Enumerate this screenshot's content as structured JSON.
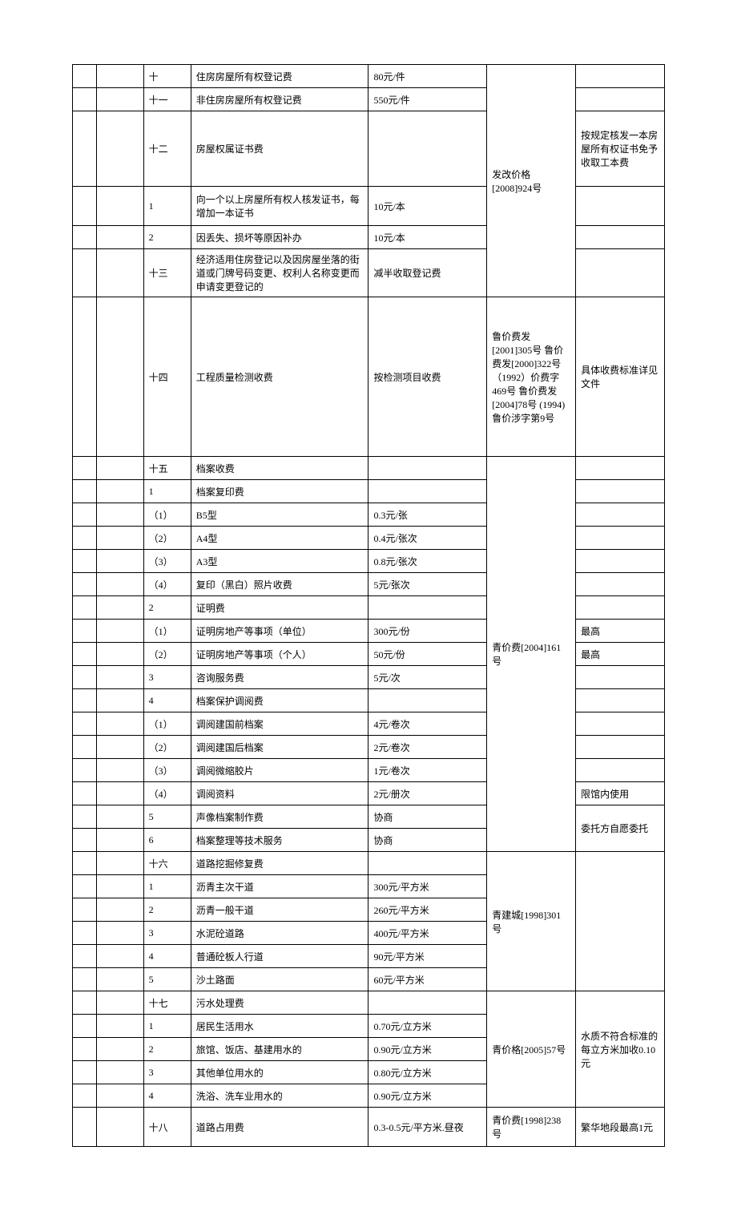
{
  "rows": {
    "r1": {
      "c": "十",
      "d": "住房房屋所有权登记费",
      "e": "80元/件"
    },
    "r2": {
      "c": "十一",
      "d": "非住房房屋所有权登记费",
      "e": "550元/件"
    },
    "r3": {
      "c": "十二",
      "d": "房屋权属证书费",
      "e": "",
      "g": "按规定核发一本房屋所有权证书免予收取工本费"
    },
    "r4": {
      "c": "1",
      "d": "向一个以上房屋所有权人核发证书，每增加一本证书",
      "e": "10元/本"
    },
    "r5": {
      "c": "2",
      "d": "因丢失、损坏等原因补办",
      "e": "10元/本"
    },
    "r6": {
      "c": "十三",
      "d": "经济适用住房登记以及因房屋坐落的街道或门牌号码变更、权利人名称变更而申请变更登记的",
      "e": "减半收取登记费"
    },
    "grpA_f": "发改价格[2008]924号",
    "r7": {
      "c": "十四",
      "d": "工程质量检测收费",
      "e": "按检测项目收费",
      "f": "鲁价费发[2001]305号 鲁价费发[2000]322号 （1992）价费字469号 鲁价费发[2004]78号 (1994)鲁价涉字第9号",
      "g": "具体收费标准详见文件"
    },
    "r8": {
      "c": "十五",
      "d": "档案收费"
    },
    "r9": {
      "c": "1",
      "d": "档案复印费"
    },
    "r10": {
      "c": "（1）",
      "d": "B5型",
      "e": "0.3元/张"
    },
    "r11": {
      "c": "（2）",
      "d": "A4型",
      "e": "0.4元/张次"
    },
    "r12": {
      "c": "（3）",
      "d": "A3型",
      "e": "0.8元/张次"
    },
    "r13": {
      "c": "（4）",
      "d": "复印（黑白）照片收费",
      "e": "5元/张次"
    },
    "r14": {
      "c": "2",
      "d": "证明费"
    },
    "r15": {
      "c": "（1）",
      "d": "证明房地产等事项（单位）",
      "e": "300元/份",
      "g": "最高"
    },
    "r16": {
      "c": "（2）",
      "d": "证明房地产等事项（个人）",
      "e": "50元/份",
      "g": "最高"
    },
    "grpB_f": "青价费[2004]161号",
    "r17": {
      "c": "3",
      "d": "咨询服务费",
      "e": "5元/次"
    },
    "r18": {
      "c": "4",
      "d": "档案保护调阅费"
    },
    "r19": {
      "c": "（1）",
      "d": "调阅建国前档案",
      "e": "4元/卷次"
    },
    "r20": {
      "c": "（2）",
      "d": "调阅建国后档案",
      "e": "2元/卷次"
    },
    "r21": {
      "c": "（3）",
      "d": "调阅微缩胶片",
      "e": "1元/卷次"
    },
    "r22": {
      "c": "（4）",
      "d": "调阅资料",
      "e": "2元/册次",
      "g": "限馆内使用"
    },
    "r23": {
      "c": "5",
      "d": "声像档案制作费",
      "e": "协商"
    },
    "r24": {
      "c": "6",
      "d": "档案整理等技术服务",
      "e": "协商"
    },
    "grpC_g": "委托方自愿委托",
    "r25": {
      "c": "十六",
      "d": "道路挖掘修复费"
    },
    "r26": {
      "c": "1",
      "d": "沥青主次干道",
      "e": "300元/平方米"
    },
    "r27": {
      "c": "2",
      "d": "沥青一般干道",
      "e": "260元/平方米"
    },
    "r28": {
      "c": "3",
      "d": "水泥砼道路",
      "e": "400元/平方米"
    },
    "grpD_f": "青建城[1998]301号",
    "r29": {
      "c": "4",
      "d": "普通砼板人行道",
      "e": "90元/平方米"
    },
    "r30": {
      "c": "5",
      "d": "沙土路面",
      "e": "60元/平方米"
    },
    "r31": {
      "c": "十七",
      "d": "污水处理费"
    },
    "r32": {
      "c": "1",
      "d": "居民生活用水",
      "e": "0.70元/立方米"
    },
    "r33": {
      "c": "2",
      "d": "旅馆、饭店、基建用水的",
      "e": "0.90元/立方米"
    },
    "r34": {
      "c": "3",
      "d": "其他单位用水的",
      "e": "0.80元/立方米"
    },
    "grpE_f": "青价格[2005]57号",
    "grpE_g": "水质不符合标准的每立方米加收0.10元",
    "r35": {
      "c": "4",
      "d": "洗浴、洗车业用水的",
      "e": "0.90元/立方米"
    },
    "r36": {
      "c": "十八",
      "d": "道路占用费",
      "e": "0.3-0.5元/平方米.昼夜",
      "f": "青价费[1998]238号",
      "g": "繁华地段最高1元"
    }
  }
}
